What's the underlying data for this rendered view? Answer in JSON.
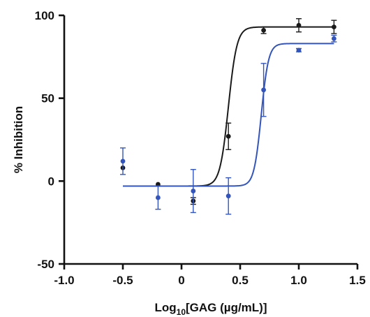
{
  "chart_data": {
    "type": "scatter",
    "xlabel_prefix": "Log",
    "xlabel_subscript": "10",
    "xlabel_suffix": "[GAG (µg/mL)]",
    "ylabel": "% Inhibition",
    "xlim": [
      -1.0,
      1.5
    ],
    "ylim": [
      -50,
      100
    ],
    "x_ticks": [
      -1.0,
      -0.5,
      0,
      0.5,
      1.0,
      1.5
    ],
    "x_tick_labels": [
      "-1.0",
      "-0.5",
      "0",
      "0.5",
      "1.0",
      "1.5"
    ],
    "y_ticks": [
      -50,
      0,
      50,
      100
    ],
    "y_tick_labels": [
      "-50",
      "0",
      "50",
      "100"
    ],
    "grid": false,
    "legend": "none",
    "series": [
      {
        "color": "#1a1a1a",
        "x": [
          -0.5,
          -0.2,
          0.1,
          0.4,
          0.7,
          1.0,
          1.3
        ],
        "y": [
          8,
          -2,
          -12,
          27,
          91,
          94,
          93
        ],
        "err": [
          0,
          0,
          2,
          8,
          2,
          4,
          4
        ],
        "fit": {
          "bottom": -3,
          "top": 93,
          "log_ec50": 0.4,
          "hill_slope": 12
        }
      },
      {
        "color": "#3355bb",
        "x": [
          -0.5,
          -0.2,
          0.1,
          0.4,
          0.7,
          1.0,
          1.3
        ],
        "y": [
          12,
          -10,
          -6,
          -9,
          55,
          79,
          86
        ],
        "err": [
          8,
          7,
          13,
          11,
          16,
          1,
          2
        ],
        "fit": {
          "bottom": -3,
          "top": 83,
          "log_ec50": 0.68,
          "hill_slope": 14
        }
      }
    ]
  }
}
